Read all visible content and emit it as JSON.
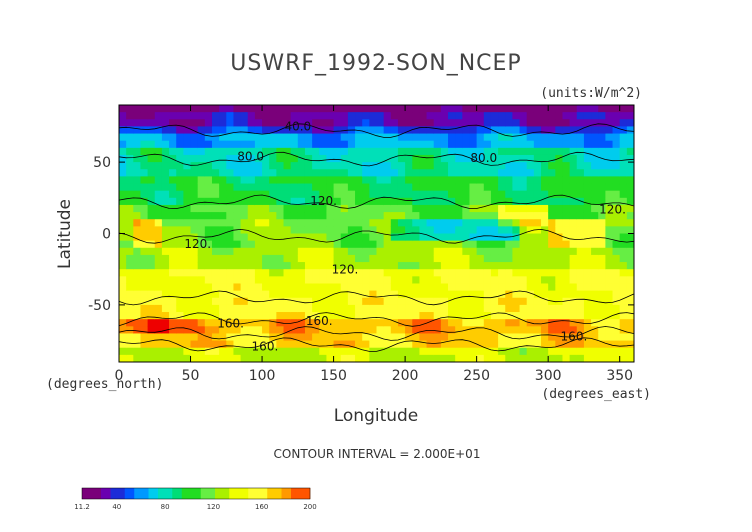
{
  "chart_data": {
    "type": "heatmap",
    "title": "USWRF_1992-SON_NCEP",
    "units": "(units:W/m^2)",
    "xlabel": "Longitude",
    "ylabel": "Latitude",
    "x_unit_label": "(degrees_east)",
    "y_unit_label": "(degrees_north)",
    "xlim": [
      0,
      360
    ],
    "ylim": [
      -90,
      90
    ],
    "x_ticks": [
      "0",
      "50",
      "100",
      "150",
      "200",
      "250",
      "300",
      "350"
    ],
    "x_tick_values": [
      0,
      50,
      100,
      150,
      200,
      250,
      300,
      350
    ],
    "y_ticks": [
      "50",
      "0",
      "-50"
    ],
    "y_tick_values": [
      50,
      0,
      -50
    ],
    "contour_interval_text": "CONTOUR INTERVAL = 2.000E+01",
    "contour_labels": [
      {
        "text": "40.0",
        "lon": 125,
        "lat": 72
      },
      {
        "text": "80.0",
        "lon": 92,
        "lat": 51
      },
      {
        "text": "80.0",
        "lon": 255,
        "lat": 50
      },
      {
        "text": "120.",
        "lon": 143,
        "lat": 20
      },
      {
        "text": "120.",
        "lon": 55,
        "lat": -10
      },
      {
        "text": "120.",
        "lon": 158,
        "lat": -28
      },
      {
        "text": "120.",
        "lon": 345,
        "lat": 14
      },
      {
        "text": "160.",
        "lon": 78,
        "lat": -66
      },
      {
        "text": "160.",
        "lon": 140,
        "lat": -64
      },
      {
        "text": "160.",
        "lon": 102,
        "lat": -82
      },
      {
        "text": "160.",
        "lon": 318,
        "lat": -75
      }
    ],
    "colorbar": {
      "min": 11.2,
      "max": 200,
      "tick_labels": [
        "11.2",
        "40",
        "80",
        "120",
        "160",
        "200"
      ],
      "tick_values": [
        11.2,
        40,
        80,
        120,
        160,
        200
      ]
    },
    "value_range": [
      11.2,
      200
    ]
  }
}
